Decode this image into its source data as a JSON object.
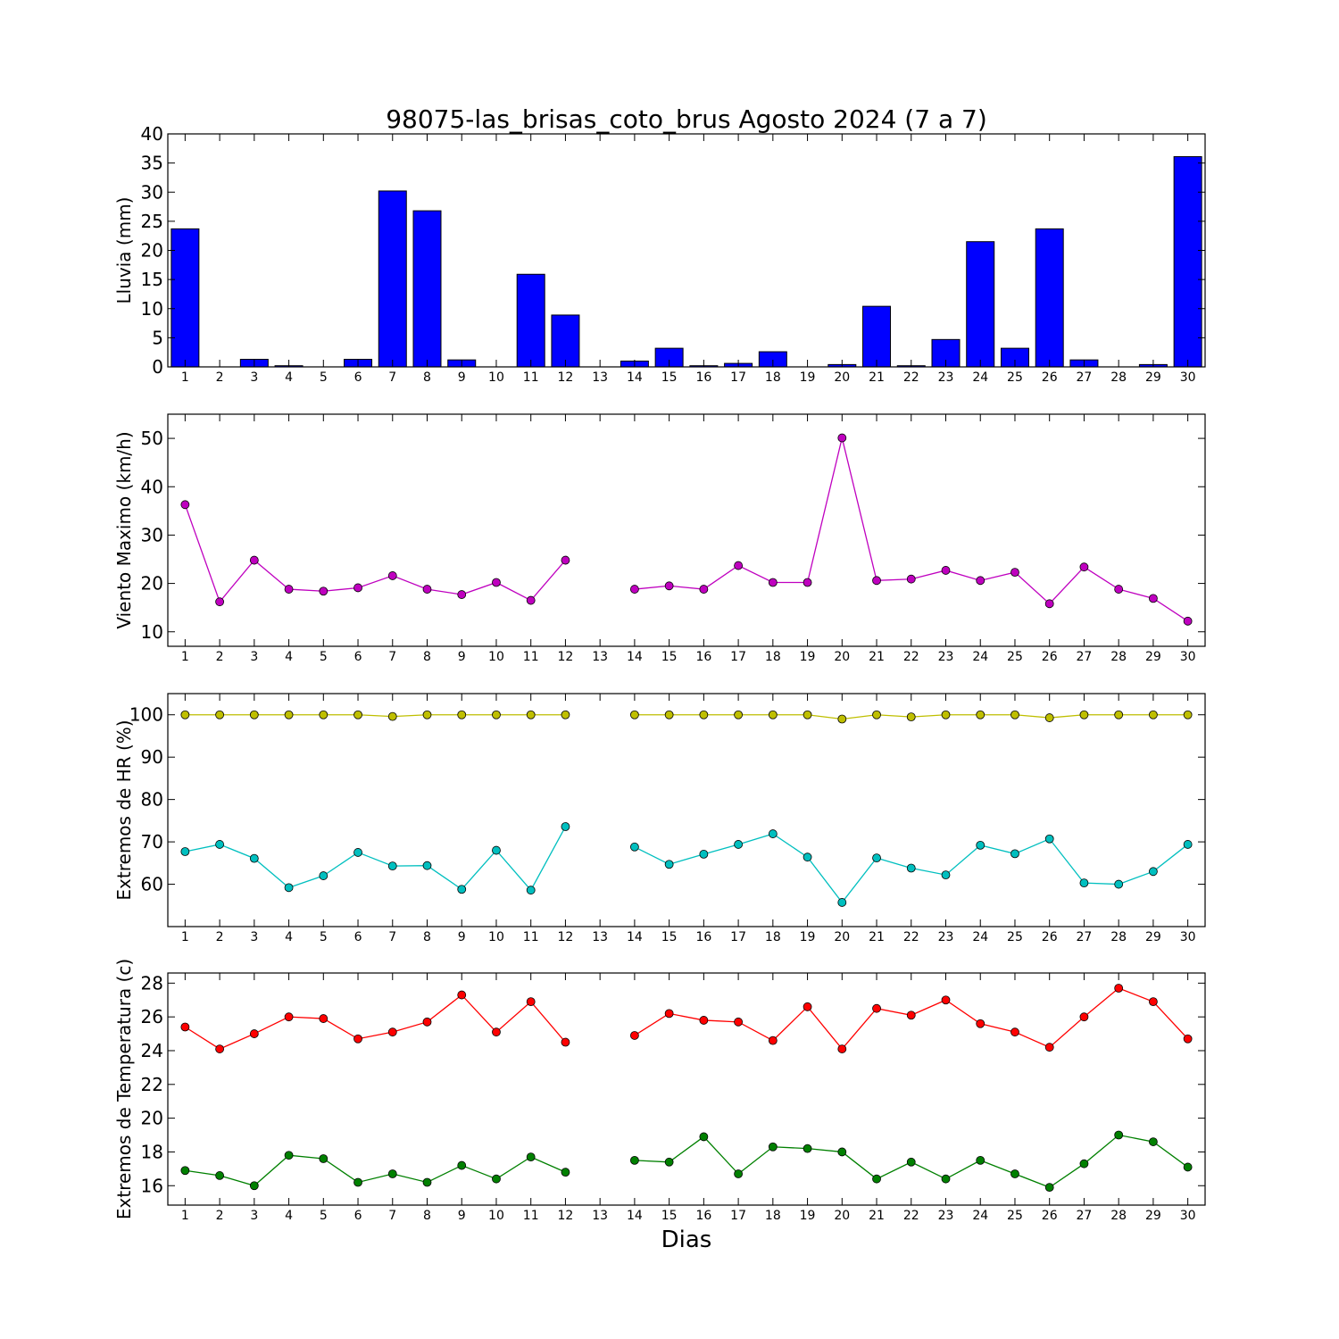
{
  "figure": {
    "title": "98075-las_brisas_coto_brus Agosto 2024  (7 a 7)",
    "xlabel": "Dias"
  },
  "chart_data": [
    {
      "type": "bar",
      "ylabel": "Lluvia (mm)",
      "ylim": [
        0,
        40
      ],
      "yticks": [
        0,
        5,
        10,
        15,
        20,
        25,
        30,
        35,
        40
      ],
      "xlim": [
        0.5,
        30.5
      ],
      "x": [
        1,
        2,
        3,
        4,
        5,
        6,
        7,
        8,
        9,
        10,
        11,
        12,
        13,
        14,
        15,
        16,
        17,
        18,
        19,
        20,
        21,
        22,
        23,
        24,
        25,
        26,
        27,
        28,
        29,
        30
      ],
      "series": [
        {
          "color": "#0000ff",
          "values": [
            23.7,
            0,
            1.3,
            0.2,
            0,
            1.3,
            30.2,
            26.8,
            1.2,
            0,
            15.9,
            8.9,
            0,
            1.0,
            3.2,
            0.2,
            0.6,
            2.6,
            0,
            0.4,
            10.4,
            0.2,
            4.7,
            21.5,
            3.2,
            23.7,
            1.2,
            0,
            0.4,
            36.1
          ]
        }
      ]
    },
    {
      "type": "line",
      "ylabel": "Viento Maximo (km/h)",
      "ylim": [
        7,
        55
      ],
      "yticks": [
        10,
        20,
        30,
        40,
        50
      ],
      "xlim": [
        0.5,
        30.5
      ],
      "x": [
        1,
        2,
        3,
        4,
        5,
        6,
        7,
        8,
        9,
        10,
        11,
        12,
        13,
        14,
        15,
        16,
        17,
        18,
        19,
        20,
        21,
        22,
        23,
        24,
        25,
        26,
        27,
        28,
        29,
        30
      ],
      "series": [
        {
          "color": "#bf00bf",
          "values": [
            36.3,
            16.2,
            24.8,
            18.8,
            18.4,
            19.1,
            21.6,
            18.8,
            17.7,
            20.2,
            16.5,
            24.8,
            null,
            18.8,
            19.5,
            18.8,
            23.7,
            20.2,
            20.2,
            50.1,
            20.6,
            20.9,
            22.7,
            20.6,
            22.3,
            15.8,
            23.4,
            18.8,
            16.9,
            12.2
          ]
        }
      ]
    },
    {
      "type": "line",
      "ylabel": "Extremos de HR (%)",
      "ylim": [
        50,
        105
      ],
      "yticks": [
        60,
        70,
        80,
        90,
        100
      ],
      "xlim": [
        0.5,
        30.5
      ],
      "x": [
        1,
        2,
        3,
        4,
        5,
        6,
        7,
        8,
        9,
        10,
        11,
        12,
        13,
        14,
        15,
        16,
        17,
        18,
        19,
        20,
        21,
        22,
        23,
        24,
        25,
        26,
        27,
        28,
        29,
        30
      ],
      "series": [
        {
          "color": "#bfbf00",
          "values": [
            100,
            100,
            100,
            100,
            100,
            100,
            99.6,
            100,
            100,
            100,
            100,
            100,
            null,
            100,
            100,
            100,
            100,
            100,
            100,
            99,
            100,
            99.5,
            100,
            100,
            100,
            99.3,
            100,
            100,
            100,
            100
          ]
        },
        {
          "color": "#00bfbf",
          "values": [
            67.7,
            69.4,
            66.1,
            59.2,
            62,
            67.5,
            64.3,
            64.4,
            58.8,
            68,
            58.6,
            73.6,
            null,
            68.8,
            64.7,
            67.1,
            69.4,
            71.9,
            66.4,
            55.7,
            66.2,
            63.8,
            62.2,
            69.2,
            67.2,
            70.7,
            60.3,
            60,
            63,
            69.4
          ]
        }
      ]
    },
    {
      "type": "line",
      "ylabel": "Extremos de Temperatura (c)",
      "ylim": [
        14.85,
        28.6
      ],
      "yticks": [
        16,
        18,
        20,
        22,
        24,
        26,
        28
      ],
      "xlim": [
        0.5,
        30.5
      ],
      "x": [
        1,
        2,
        3,
        4,
        5,
        6,
        7,
        8,
        9,
        10,
        11,
        12,
        13,
        14,
        15,
        16,
        17,
        18,
        19,
        20,
        21,
        22,
        23,
        24,
        25,
        26,
        27,
        28,
        29,
        30
      ],
      "series": [
        {
          "color": "#ff0000",
          "values": [
            25.4,
            24.1,
            25,
            26,
            25.9,
            24.7,
            25.1,
            25.7,
            27.3,
            25.1,
            26.9,
            24.5,
            null,
            24.9,
            26.2,
            25.8,
            25.7,
            24.6,
            26.6,
            24.1,
            26.5,
            26.1,
            27,
            25.6,
            25.1,
            24.2,
            26,
            27.7,
            26.9,
            24.7
          ]
        },
        {
          "color": "#008000",
          "values": [
            16.9,
            16.6,
            16,
            17.8,
            17.6,
            16.2,
            16.7,
            16.2,
            17.2,
            16.4,
            17.7,
            16.8,
            null,
            17.5,
            17.4,
            18.9,
            16.7,
            18.3,
            18.2,
            18,
            16.4,
            17.4,
            16.4,
            17.5,
            16.7,
            15.9,
            17.3,
            19,
            18.6,
            17.1
          ]
        }
      ]
    }
  ]
}
